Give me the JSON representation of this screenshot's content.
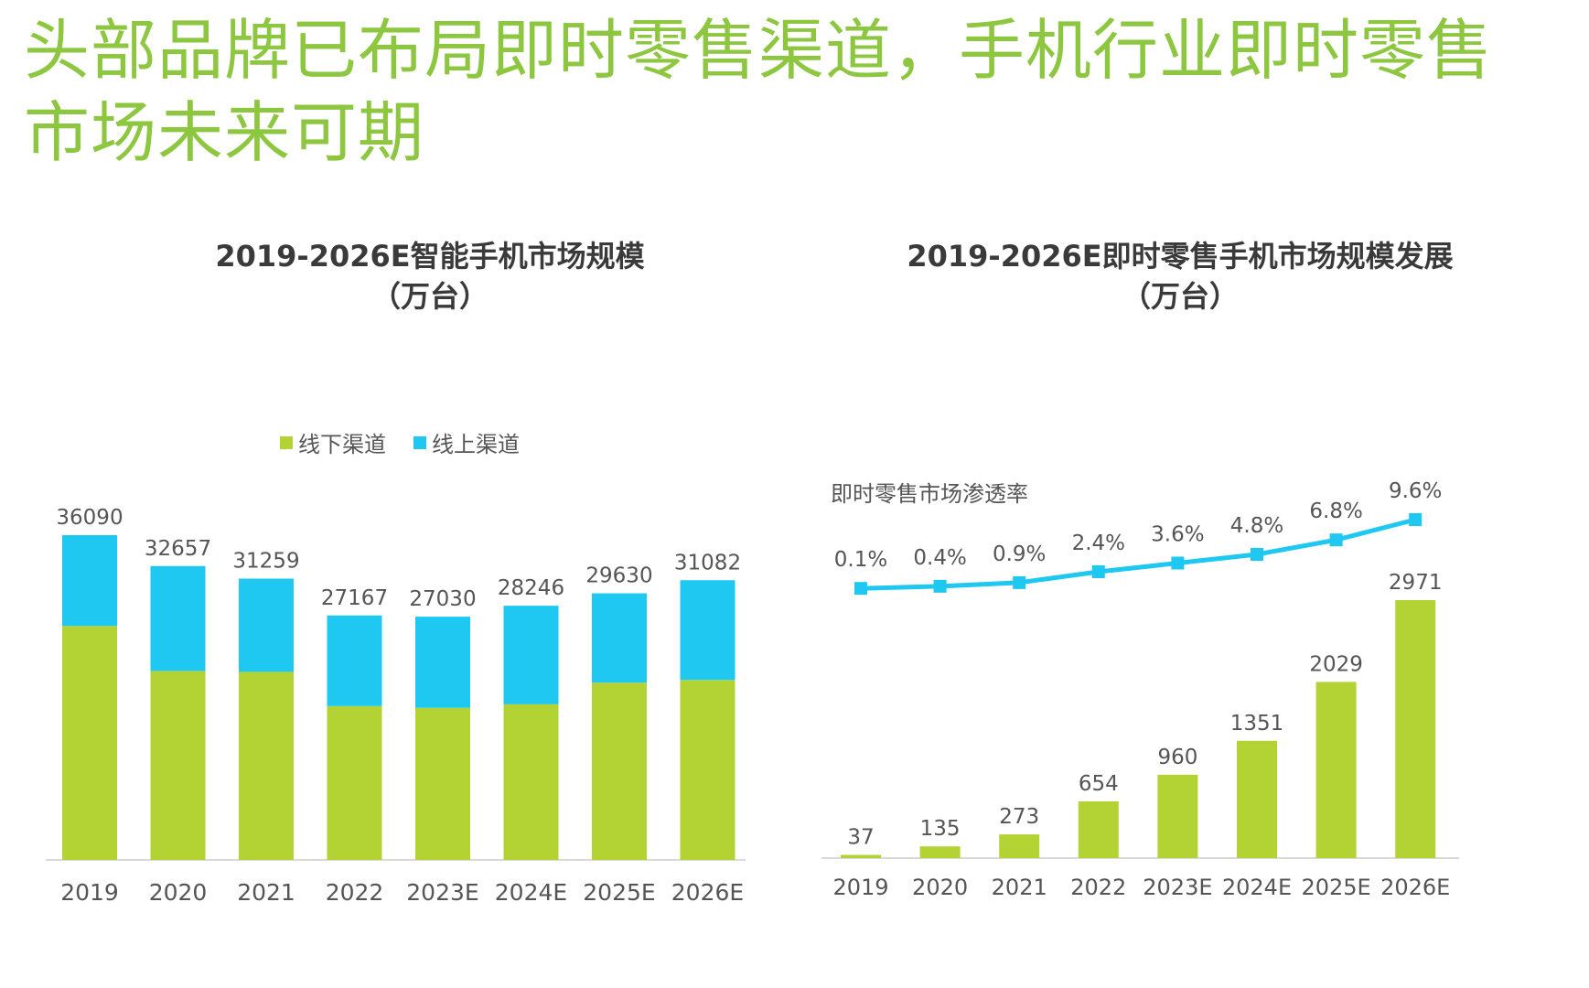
{
  "headline": "头部品牌已布局即时零售渠道，手机行业即时零售市场未来可期",
  "colors": {
    "green": "#b3d335",
    "blue": "#1ec8f0",
    "headline": "#8dc63f"
  },
  "chart_data": [
    {
      "type": "bar",
      "stacked": true,
      "title": "2019-2026E智能手机市场规模\n（万台）",
      "categories": [
        "2019",
        "2020",
        "2021",
        "2022",
        "2023E",
        "2024E",
        "2025E",
        "2026E"
      ],
      "series": [
        {
          "name": "线下渠道",
          "color": "#b3d335",
          "values": [
            26000,
            21000,
            20900,
            17100,
            16900,
            17300,
            19700,
            20000
          ]
        },
        {
          "name": "线上渠道",
          "color": "#1ec8f0",
          "values": [
            10090,
            11657,
            10359,
            10067,
            10130,
            10946,
            9930,
            11082
          ]
        }
      ],
      "totals": [
        36090,
        32657,
        31259,
        27167,
        27030,
        28246,
        29630,
        31082
      ],
      "legend": "top-center",
      "ylim": [
        0,
        36090
      ],
      "grid": false
    },
    {
      "type": "bar+line",
      "title": "2019-2026E即时零售手机市场规模发展\n（万台）",
      "categories": [
        "2019",
        "2020",
        "2021",
        "2022",
        "2023E",
        "2024E",
        "2025E",
        "2026E"
      ],
      "bar_series": {
        "color": "#b3d335",
        "values": [
          37,
          135,
          273,
          654,
          960,
          1351,
          2029,
          2971
        ]
      },
      "line_series": {
        "name": "即时零售市场渗透率",
        "color": "#1ec8f0",
        "values": [
          0.1,
          0.4,
          0.9,
          2.4,
          3.6,
          4.8,
          6.8,
          9.6
        ],
        "labels": [
          "0.1%",
          "0.4%",
          "0.9%",
          "2.4%",
          "3.6%",
          "4.8%",
          "6.8%",
          "9.6%"
        ]
      },
      "ylim": [
        0,
        2971
      ],
      "grid": false
    }
  ]
}
